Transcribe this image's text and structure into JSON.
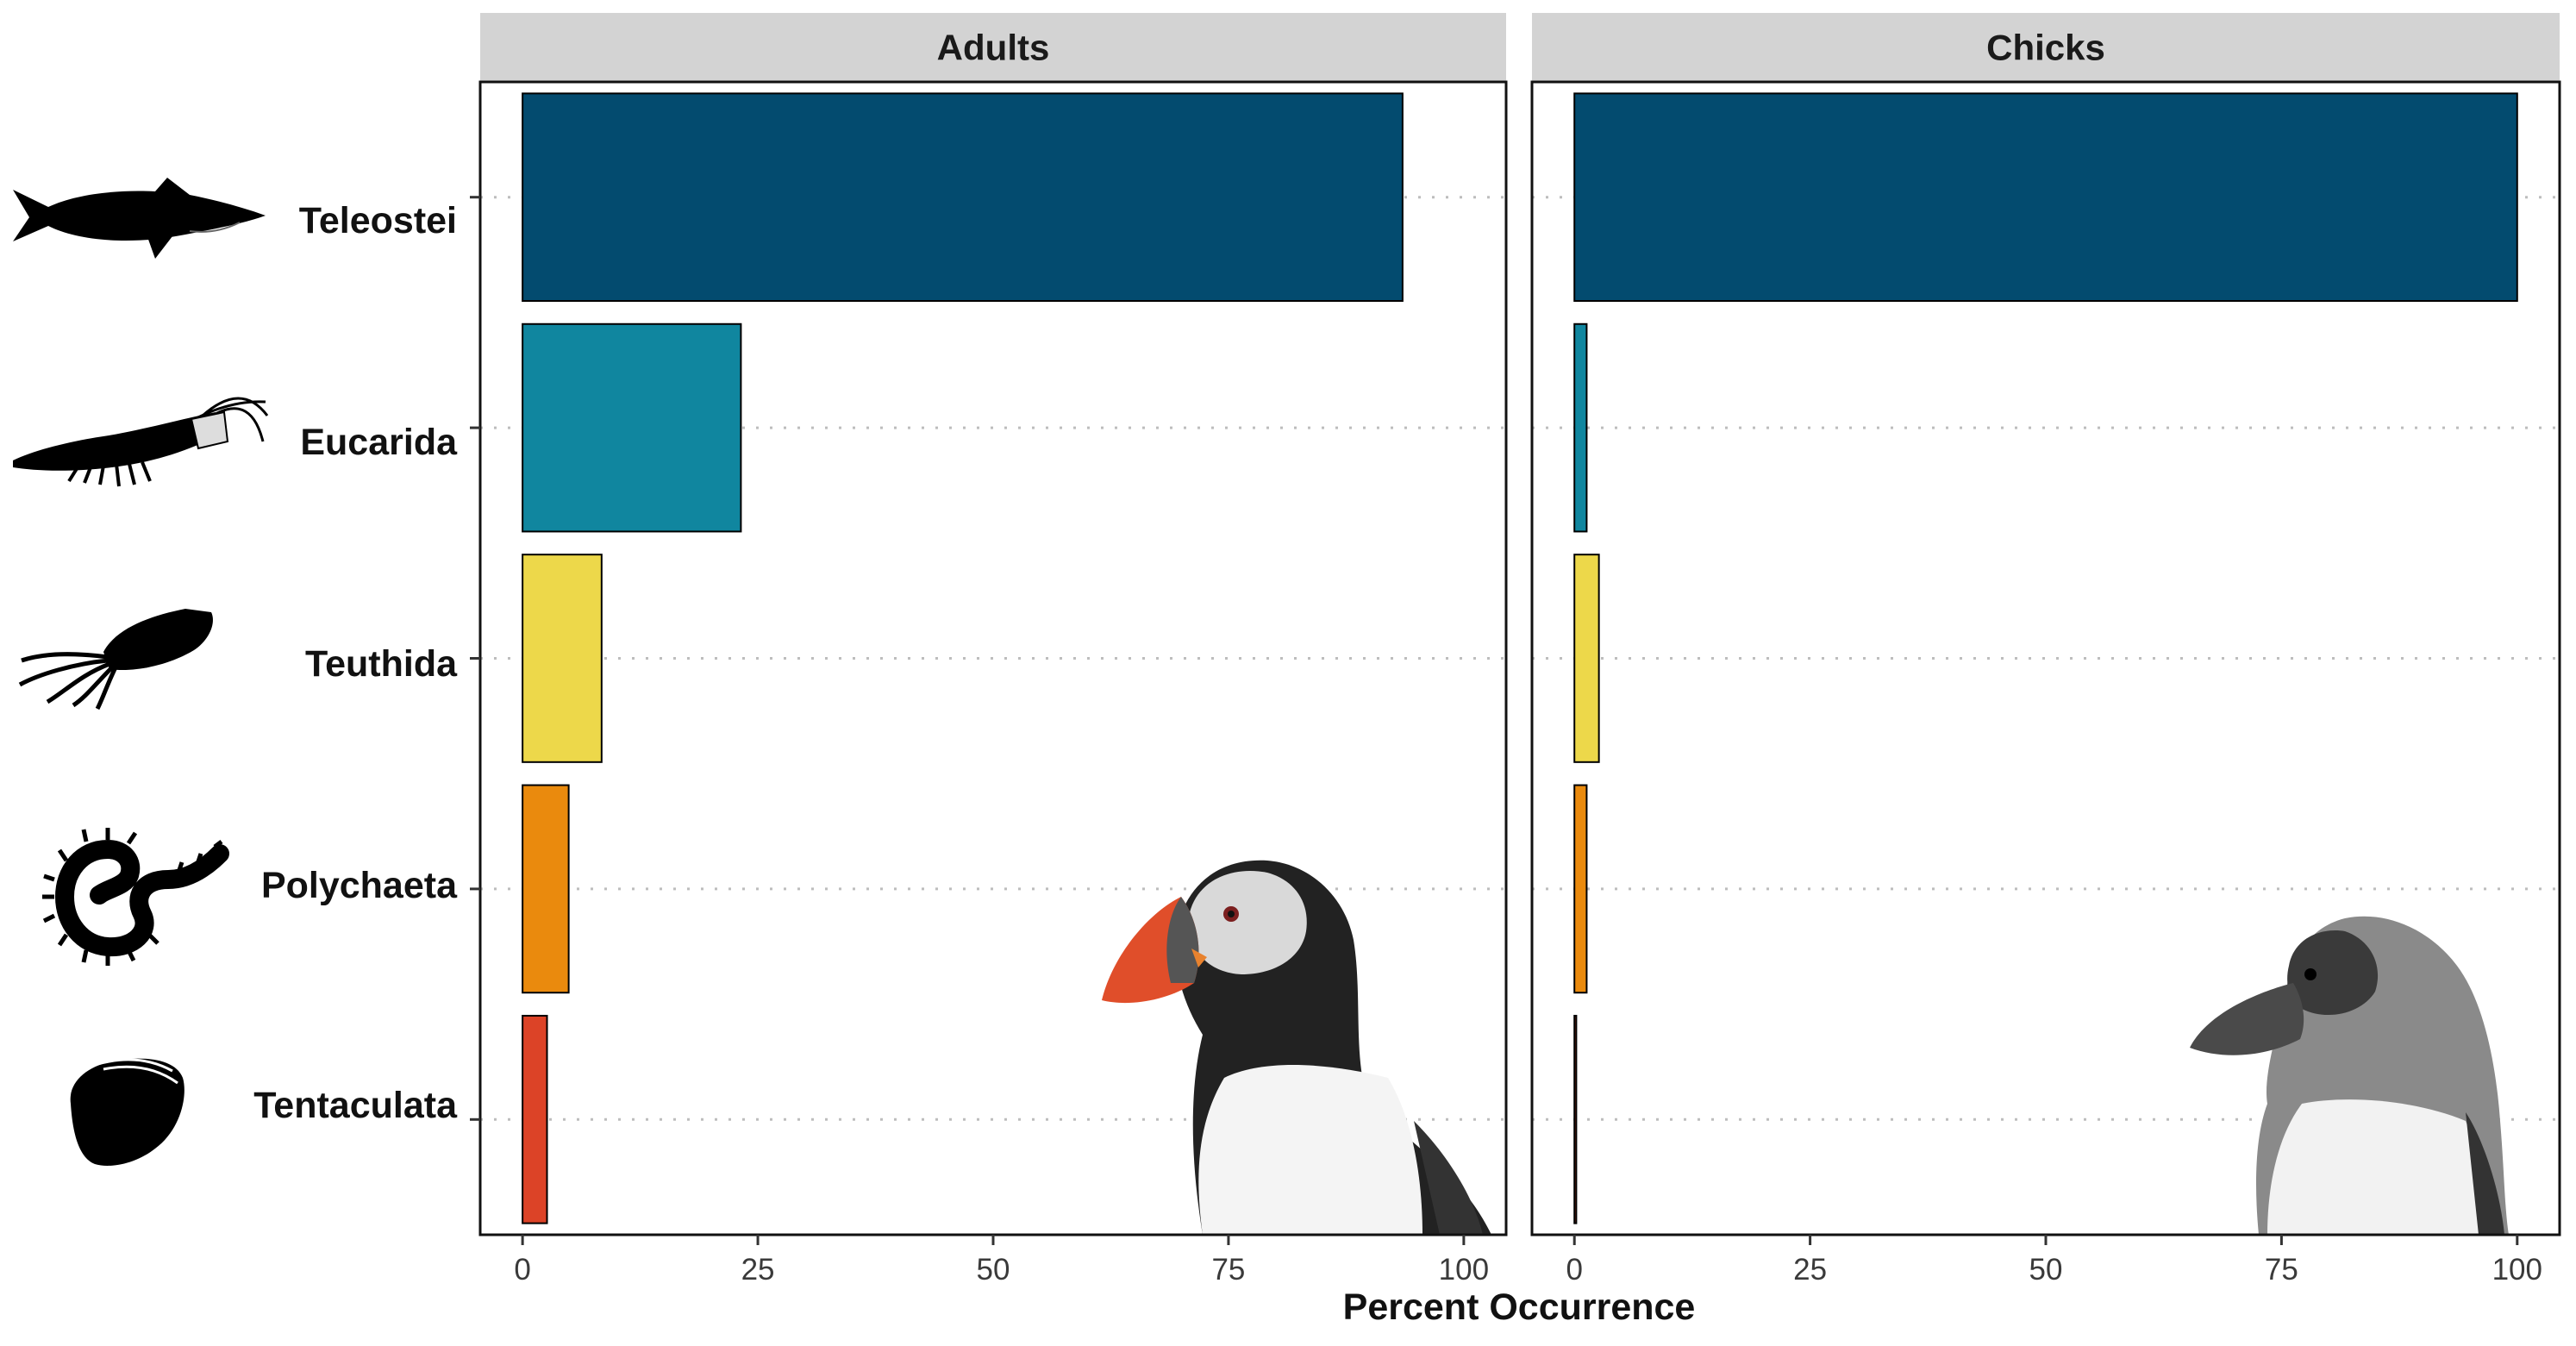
{
  "chart_data": {
    "type": "bar",
    "orientation": "horizontal",
    "panels": [
      "Adults",
      "Chicks"
    ],
    "categories": [
      "Teleostei",
      "Eucarida",
      "Teuthida",
      "Polychaeta",
      "Tentaculata"
    ],
    "series": [
      {
        "panel": "Adults",
        "values": [
          93.5,
          23.2,
          8.4,
          4.9,
          2.6
        ]
      },
      {
        "panel": "Chicks",
        "values": [
          100,
          1.3,
          2.6,
          1.3,
          0.2
        ]
      }
    ],
    "colors": {
      "Teleostei": "#034B6F",
      "Eucarida": "#10869F",
      "Teuthida": "#EDD84A",
      "Polychaeta": "#EA8A0D",
      "Tentaculata": "#DC4327"
    },
    "category_icons": [
      "fish-icon",
      "krill-icon",
      "squid-icon",
      "polychaete-worm-icon",
      "ctenophore-icon"
    ],
    "panel_images": [
      "adult-puffin-photo",
      "puffin-chick-photo"
    ],
    "xlabel": "Percent Occurrence",
    "xlim": [
      -4.5,
      104.5
    ],
    "x_ticks": [
      0,
      25,
      50,
      75,
      100
    ],
    "gridlines": "dotted horizontal at categories",
    "strip_color": "#D3D3D3"
  }
}
